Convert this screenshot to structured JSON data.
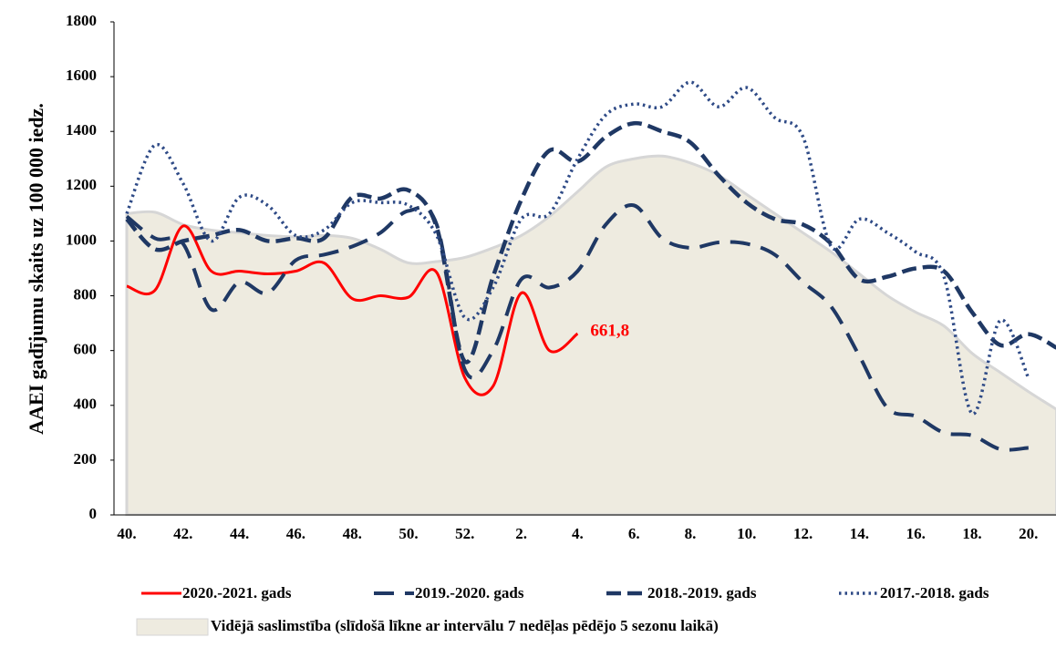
{
  "chart_data": {
    "type": "line",
    "y_label": "AAEI gadījumu skaits uz 100 000 iedz.",
    "categories": [
      "40.",
      null,
      "42.",
      null,
      "44.",
      null,
      "46.",
      null,
      "48.",
      null,
      "50.",
      null,
      "52.",
      null,
      "2.",
      null,
      "4.",
      null,
      "6.",
      null,
      "8.",
      null,
      "10.",
      null,
      "12.",
      null,
      "14.",
      null,
      "16.",
      null,
      "18.",
      null,
      "20.",
      null
    ],
    "ylim": [
      0,
      1800
    ],
    "yticks": [
      0,
      200,
      400,
      600,
      800,
      1000,
      1200,
      1400,
      1600,
      1800
    ],
    "series": [
      {
        "name": "Vidējā saslimstība (slīdošā līkne ar intervālu 7 nedēļas pēdējo 5 sezonu laikā)",
        "style": "area",
        "color": "#eeebe0",
        "values": [
          1100,
          1105,
          1060,
          1040,
          1030,
          1020,
          1015,
          1020,
          1010,
          970,
          920,
          925,
          940,
          975,
          1020,
          1090,
          1180,
          1270,
          1300,
          1310,
          1285,
          1240,
          1170,
          1100,
          1030,
          960,
          880,
          800,
          740,
          690,
          590,
          520,
          450,
          385
        ]
      },
      {
        "name": "2020.-2021. gads",
        "style": "solid",
        "color": "#ff0000",
        "values": [
          835,
          820,
          1055,
          890,
          890,
          880,
          890,
          920,
          790,
          800,
          795,
          885,
          500,
          470,
          810,
          600,
          661.8,
          null,
          null,
          null,
          null,
          null,
          null,
          null,
          null,
          null,
          null,
          null,
          null,
          null,
          null,
          null,
          null,
          null
        ],
        "value_labels": [
          null,
          null,
          null,
          null,
          null,
          null,
          null,
          null,
          null,
          null,
          null,
          null,
          null,
          null,
          null,
          null,
          "661,8",
          null,
          null,
          null,
          null,
          null,
          null,
          null,
          null,
          null,
          null,
          null,
          null,
          null,
          null,
          null,
          null,
          null
        ]
      },
      {
        "name": "2019.-2020. gads",
        "style": "long-dash",
        "color": "#1f3864",
        "values": [
          1090,
          1010,
          990,
          750,
          850,
          810,
          930,
          950,
          980,
          1030,
          1110,
          1060,
          530,
          600,
          860,
          830,
          890,
          1060,
          1130,
          1010,
          975,
          995,
          990,
          950,
          850,
          760,
          580,
          390,
          360,
          300,
          290,
          240,
          245,
          null
        ]
      },
      {
        "name": "2018.-2019. gads",
        "style": "dash",
        "color": "#1f3864",
        "values": [
          1080,
          970,
          1000,
          1020,
          1040,
          1000,
          1010,
          1010,
          1160,
          1155,
          1185,
          1050,
          560,
          870,
          1150,
          1330,
          1290,
          1380,
          1430,
          1400,
          1360,
          1240,
          1140,
          1080,
          1060,
          990,
          860,
          870,
          900,
          890,
          740,
          620,
          660,
          610
        ]
      },
      {
        "name": "2017.-2018. gads",
        "style": "dot",
        "color": "#2e4a86",
        "values": [
          1100,
          1350,
          1210,
          1000,
          1160,
          1130,
          1020,
          1040,
          1140,
          1140,
          1130,
          1020,
          720,
          830,
          1080,
          1100,
          1300,
          1460,
          1500,
          1490,
          1580,
          1490,
          1560,
          1450,
          1380,
          980,
          1080,
          1030,
          960,
          870,
          370,
          710,
          500,
          null
        ]
      }
    ]
  }
}
